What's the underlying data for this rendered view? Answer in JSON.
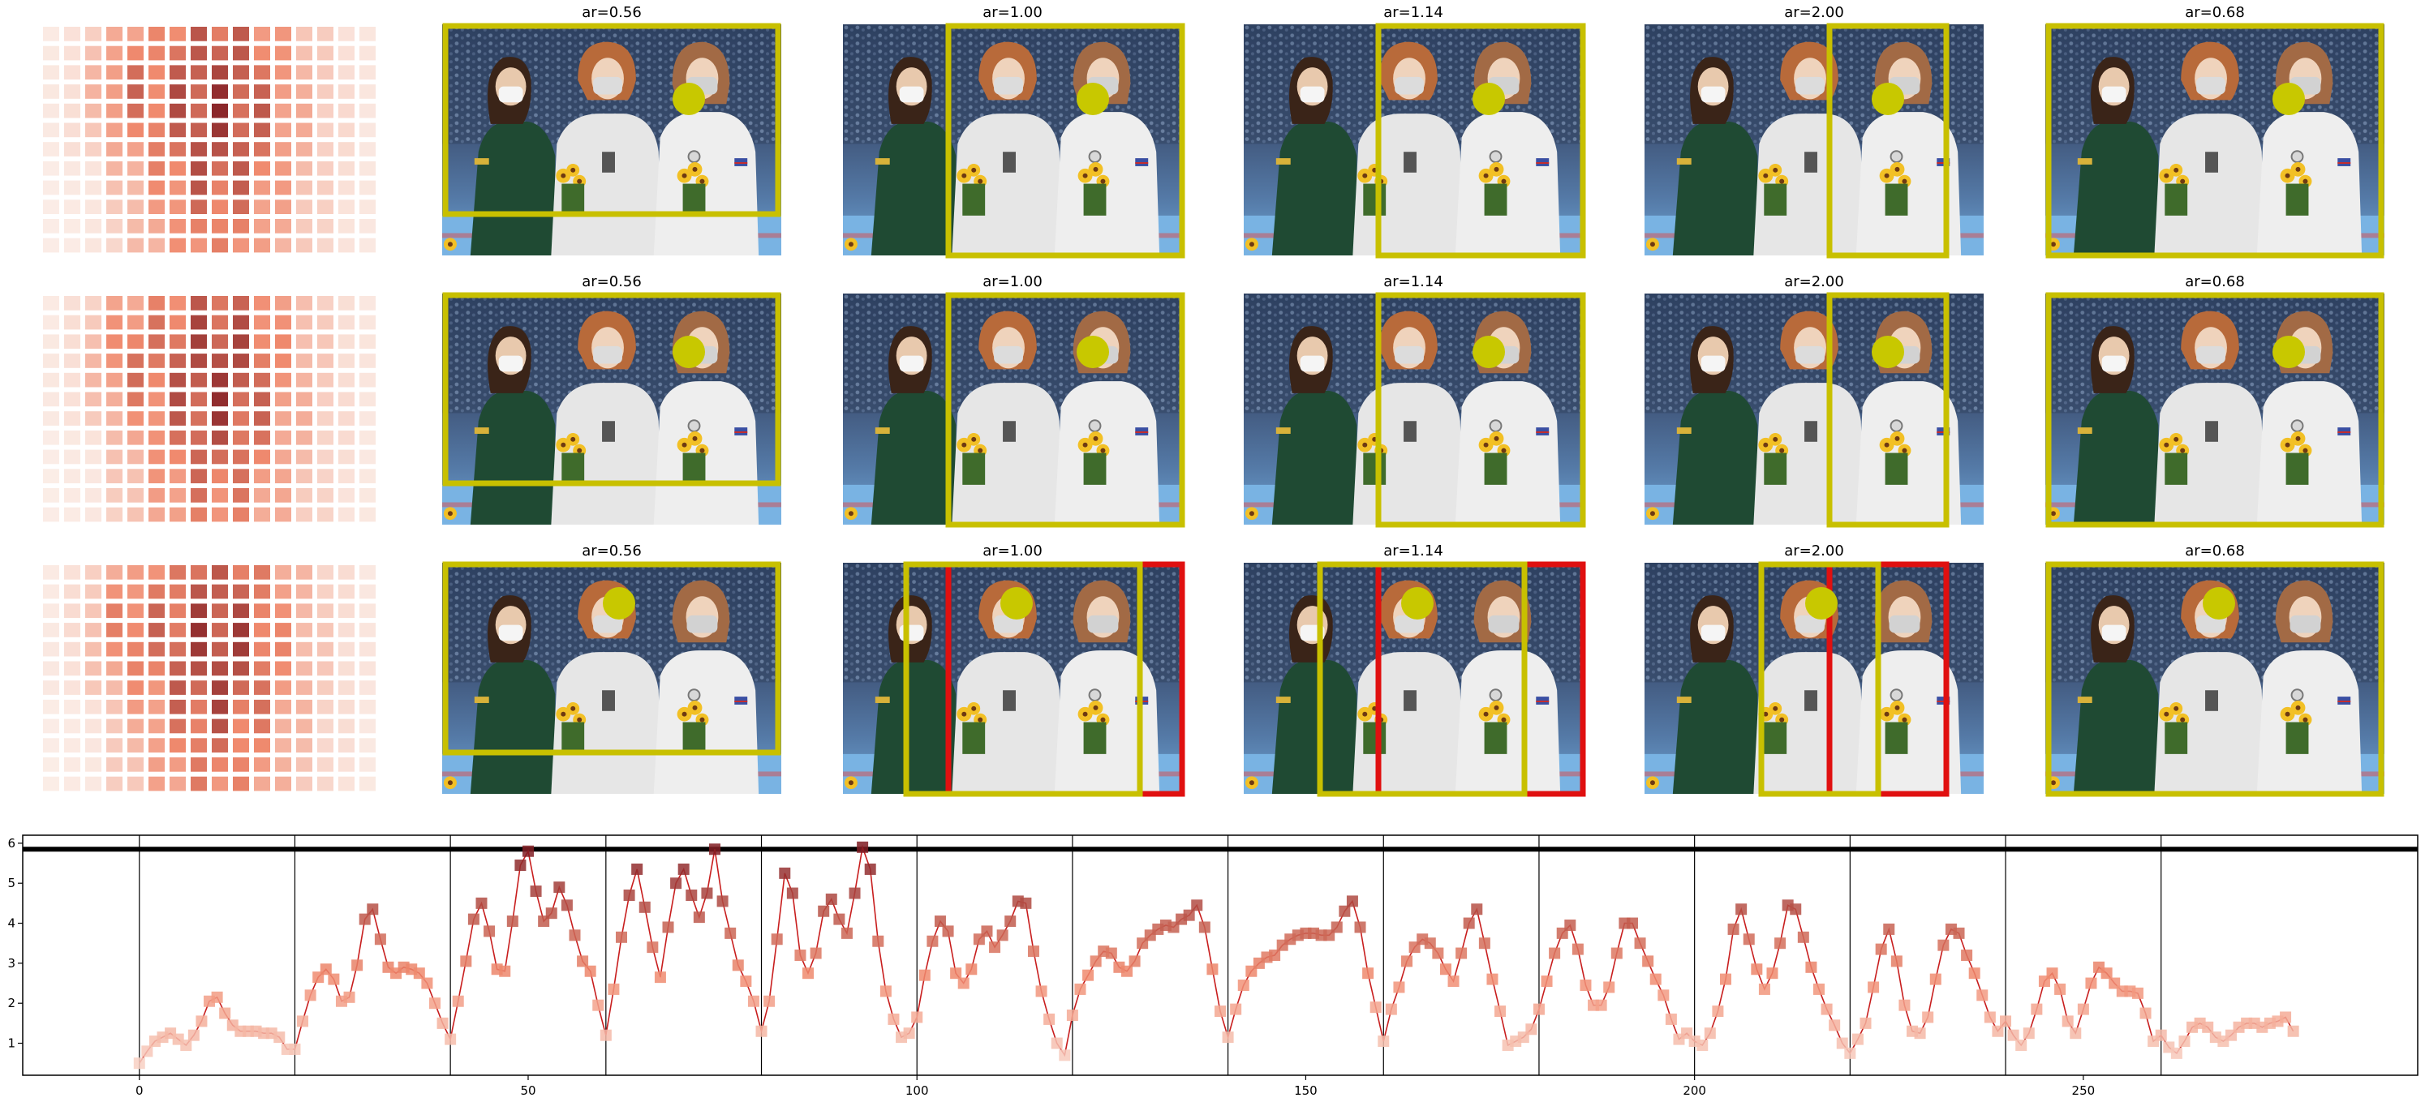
{
  "colors": {
    "crop_box": "#c8c000",
    "crop_box_alt": "#e01010",
    "focus_dot": "#c8c800",
    "line": "#c81e1e",
    "threshold": "#000000",
    "heat_light": "#fde2d6",
    "heat_dark": "#8b1a1a"
  },
  "image_grid": {
    "rows": [
      {
        "labels": [
          "ar=0.56",
          "ar=1.00",
          "ar=1.14",
          "ar=2.00",
          "ar=0.68"
        ]
      },
      {
        "labels": [
          "ar=0.56",
          "ar=1.00",
          "ar=1.14",
          "ar=2.00",
          "ar=0.68"
        ]
      },
      {
        "labels": [
          "ar=0.56",
          "ar=1.00",
          "ar=1.14",
          "ar=2.00",
          "ar=0.68"
        ]
      }
    ]
  },
  "chart_data": {
    "type": "line",
    "xlim": [
      -15,
      293
    ],
    "ylim": [
      0.2,
      6.2
    ],
    "xticks": [
      0,
      50,
      100,
      150,
      200,
      250
    ],
    "yticks": [
      1,
      2,
      3,
      4,
      5,
      6
    ],
    "threshold": 5.85,
    "segment_boundaries": [
      0,
      20,
      40,
      60,
      80,
      100,
      120,
      140,
      160,
      180,
      200,
      220,
      240,
      260
    ],
    "y": [
      0.5,
      0.8,
      1.05,
      1.15,
      1.25,
      1.1,
      0.95,
      1.2,
      1.55,
      2.05,
      2.15,
      1.75,
      1.45,
      1.3,
      1.3,
      1.3,
      1.25,
      1.25,
      1.15,
      0.85,
      0.85,
      1.55,
      2.2,
      2.65,
      2.85,
      2.6,
      2.05,
      2.15,
      2.95,
      4.1,
      4.35,
      3.6,
      2.9,
      2.75,
      2.9,
      2.85,
      2.75,
      2.5,
      2.0,
      1.5,
      1.1,
      2.05,
      3.05,
      4.1,
      4.5,
      3.8,
      2.85,
      2.8,
      4.05,
      5.45,
      5.8,
      4.8,
      4.05,
      4.25,
      4.9,
      4.45,
      3.7,
      3.05,
      2.8,
      1.95,
      1.2,
      2.35,
      3.65,
      4.7,
      5.35,
      4.4,
      3.4,
      2.65,
      3.9,
      5.0,
      5.35,
      4.7,
      4.15,
      4.75,
      5.85,
      4.55,
      3.75,
      2.95,
      2.55,
      2.05,
      1.3,
      2.05,
      3.6,
      5.25,
      4.75,
      3.2,
      2.75,
      3.25,
      4.3,
      4.6,
      4.1,
      3.75,
      4.75,
      5.9,
      5.35,
      3.55,
      2.3,
      1.6,
      1.15,
      1.25,
      1.65,
      2.7,
      3.55,
      4.05,
      3.8,
      2.75,
      2.5,
      2.85,
      3.6,
      3.8,
      3.4,
      3.7,
      4.05,
      4.55,
      4.5,
      3.3,
      2.3,
      1.6,
      1.0,
      0.7,
      1.7,
      2.35,
      2.7,
      3.05,
      3.3,
      3.25,
      2.9,
      2.8,
      3.05,
      3.5,
      3.7,
      3.85,
      3.95,
      3.9,
      4.1,
      4.2,
      4.45,
      3.9,
      2.85,
      1.8,
      1.15,
      1.85,
      2.45,
      2.8,
      3.0,
      3.15,
      3.2,
      3.45,
      3.6,
      3.7,
      3.75,
      3.75,
      3.7,
      3.7,
      3.9,
      4.3,
      4.55,
      3.9,
      2.75,
      1.9,
      1.05,
      1.85,
      2.4,
      3.05,
      3.4,
      3.6,
      3.5,
      3.25,
      2.85,
      2.55,
      3.25,
      4.0,
      4.35,
      3.5,
      2.6,
      1.8,
      0.95,
      1.05,
      1.15,
      1.35,
      1.85,
      2.55,
      3.25,
      3.75,
      3.95,
      3.35,
      2.45,
      1.95,
      1.95,
      2.4,
      3.25,
      4.0,
      4.0,
      3.5,
      3.05,
      2.6,
      2.2,
      1.6,
      1.1,
      1.25,
      1.05,
      0.95,
      1.25,
      1.8,
      2.6,
      3.85,
      4.35,
      3.6,
      2.85,
      2.35,
      2.75,
      3.5,
      4.45,
      4.35,
      3.65,
      2.9,
      2.35,
      1.85,
      1.45,
      1.0,
      0.75,
      1.1,
      1.5,
      2.4,
      3.35,
      3.85,
      3.05,
      1.95,
      1.3,
      1.25,
      1.65,
      2.6,
      3.45,
      3.85,
      3.75,
      3.2,
      2.75,
      2.2,
      1.65,
      1.3,
      1.55,
      1.2,
      0.95,
      1.25,
      1.85,
      2.55,
      2.75,
      2.35,
      1.55,
      1.25,
      1.85,
      2.5,
      2.9,
      2.75,
      2.5,
      2.3,
      2.3,
      2.25,
      1.75,
      1.05,
      1.2,
      0.9,
      0.75,
      1.05,
      1.4,
      1.5,
      1.4,
      1.15,
      1.05,
      1.2,
      1.4,
      1.5,
      1.5,
      1.4,
      1.5,
      1.55,
      1.65,
      1.3
    ]
  }
}
